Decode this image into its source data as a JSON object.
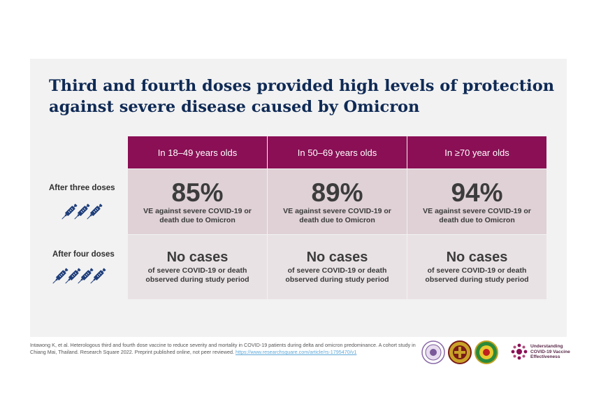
{
  "slide": {
    "title_lines": [
      "Third and fourth doses provided high levels of protection",
      "against severe disease caused by Omicron"
    ]
  },
  "table": {
    "columns": [
      "In 18–49 years olds",
      "In 50–69 years olds",
      "In ≥70 year olds"
    ],
    "rows": [
      {
        "label": "After three doses",
        "cells": [
          {
            "value": "85%",
            "line1": "VE against severe COVID-19 or",
            "line2": "death due to Omicron"
          },
          {
            "value": "89%",
            "line1": "VE against severe COVID-19 or",
            "line2": "death due to Omicron"
          },
          {
            "value": "94%",
            "line1": "VE against severe COVID-19 or",
            "line2": "death due to Omicron"
          }
        ]
      },
      {
        "label": "After four doses",
        "cells": [
          {
            "value": "No cases",
            "line1": "of severe COVID-19 or death",
            "line2": "observed during study period"
          },
          {
            "value": "No cases",
            "line1": "of severe COVID-19 or death",
            "line2": "observed during study period"
          },
          {
            "value": "No cases",
            "line1": "of severe COVID-19 or death",
            "line2": "observed during study period"
          }
        ]
      }
    ]
  },
  "footer": {
    "citation": "Intawong K, et al. Heterologous third and fourth dose vaccine to reduce severity and mortality in COVID-19 patients during delta and omicron predominance. A cohort study in Chiang Mai, Thailand. Research Square 2022. Preprint published online, not peer reviewed.",
    "citation_link": "https://www.researchsquare.com/article/rs-1795470/v1",
    "brand_lines": [
      "Understanding",
      "COVID-19 Vaccine",
      "Effectiveness"
    ]
  },
  "colors": {
    "title": "#0f2a55",
    "header_bg": "#8a0f55",
    "row_three_bg": "#dfd1d6",
    "row_four_bg": "#e9e2e4",
    "syringe": "#1f3e7a"
  }
}
